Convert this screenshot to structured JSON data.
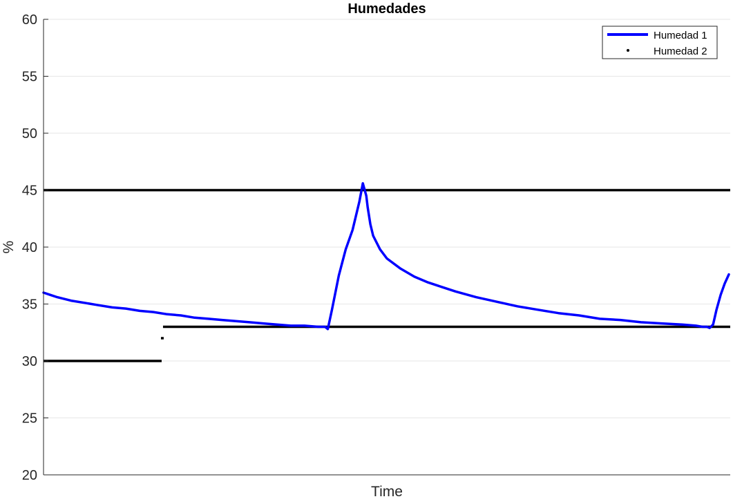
{
  "chart_data": {
    "type": "line",
    "title": "Humedades",
    "xlabel": "Time",
    "ylabel": "%",
    "ylim": [
      20,
      60
    ],
    "yticks": [
      20,
      25,
      30,
      35,
      40,
      45,
      50,
      55,
      60
    ],
    "xlim": [
      0,
      1000
    ],
    "grid": true,
    "legend_position": "top-right",
    "colors": {
      "humedad1": "#0000ff",
      "humedad2": "#000000",
      "grid": "#e6e6e6",
      "axis": "#262626"
    },
    "series": [
      {
        "name": "Humedad 1",
        "style": "line",
        "x": [
          0,
          10,
          20,
          40,
          60,
          80,
          100,
          120,
          140,
          160,
          180,
          200,
          220,
          240,
          260,
          280,
          300,
          320,
          340,
          360,
          380,
          400,
          410,
          414,
          420,
          430,
          440,
          450,
          460,
          465,
          470,
          472,
          476,
          480,
          490,
          500,
          520,
          540,
          560,
          580,
          600,
          630,
          660,
          690,
          720,
          750,
          780,
          810,
          840,
          870,
          900,
          930,
          950,
          960,
          966,
          970,
          975,
          980,
          986,
          992,
          998
        ],
        "y": [
          36.0,
          35.8,
          35.6,
          35.3,
          35.1,
          34.9,
          34.7,
          34.6,
          34.4,
          34.3,
          34.1,
          34.0,
          33.8,
          33.7,
          33.6,
          33.5,
          33.4,
          33.3,
          33.2,
          33.1,
          33.1,
          33.0,
          33.0,
          32.8,
          34.5,
          37.5,
          39.8,
          41.5,
          44.0,
          45.6,
          44.5,
          43.5,
          42.0,
          41.0,
          39.8,
          39.0,
          38.1,
          37.4,
          36.9,
          36.5,
          36.1,
          35.6,
          35.2,
          34.8,
          34.5,
          34.2,
          34.0,
          33.7,
          33.6,
          33.4,
          33.3,
          33.2,
          33.1,
          33.0,
          33.0,
          32.9,
          33.2,
          34.5,
          35.8,
          36.8,
          37.6
        ]
      },
      {
        "name": "Humedad 2",
        "style": "dots",
        "segments": [
          {
            "x": [
              0,
              172
            ],
            "y": 30
          },
          {
            "x": [
              171,
              175
            ],
            "y": 32
          },
          {
            "x": [
              174,
              1000
            ],
            "y": 33
          },
          {
            "x": [
              0,
              1000
            ],
            "y": 45
          }
        ]
      }
    ]
  }
}
